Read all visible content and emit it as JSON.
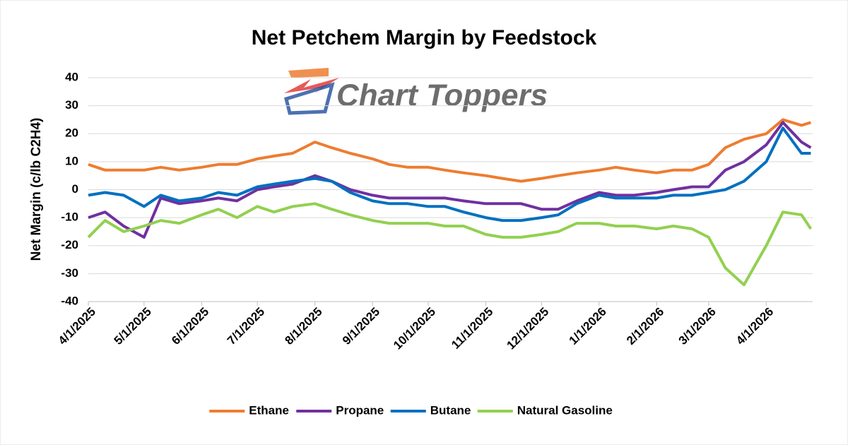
{
  "logo": "Chart Toppers",
  "chart_data": {
    "type": "line",
    "title": "Net Petchem Margin by Feedstock",
    "y_label": "Net Margin (c/lb C2H4)",
    "x": [
      "4/1/2025",
      "4/10/2025",
      "4/20/2025",
      "5/1/2025",
      "5/10/2025",
      "5/20/2025",
      "6/1/2025",
      "6/10/2025",
      "6/20/2025",
      "7/1/2025",
      "7/10/2025",
      "7/20/2025",
      "8/1/2025",
      "8/10/2025",
      "8/20/2025",
      "9/1/2025",
      "9/10/2025",
      "9/20/2025",
      "10/1/2025",
      "10/10/2025",
      "10/20/2025",
      "11/1/2025",
      "11/10/2025",
      "11/20/2025",
      "12/1/2025",
      "12/10/2025",
      "12/20/2025",
      "1/1/2026",
      "1/10/2026",
      "1/20/2026",
      "2/1/2026",
      "2/10/2026",
      "2/20/2026",
      "3/1/2026",
      "3/10/2026",
      "3/20/2026",
      "4/1/2026",
      "4/10/2026",
      "4/20/2026",
      "4/25/2026"
    ],
    "series": [
      {
        "name": "Ethane",
        "color": "#ed7d31",
        "values": [
          9,
          7,
          7,
          7,
          8,
          7,
          8,
          9,
          9,
          11,
          12,
          13,
          17,
          15,
          13,
          11,
          9,
          8,
          8,
          7,
          6,
          5,
          4,
          3,
          4,
          5,
          6,
          7,
          8,
          7,
          6,
          7,
          7,
          9,
          15,
          18,
          20,
          25,
          23,
          24
        ]
      },
      {
        "name": "Propane",
        "color": "#7030a0",
        "values": [
          -10,
          -8,
          -13,
          -17,
          -3,
          -5,
          -4,
          -3,
          -4,
          0,
          1,
          2,
          5,
          3,
          0,
          -2,
          -3,
          -3,
          -3,
          -3,
          -4,
          -5,
          -5,
          -5,
          -7,
          -7,
          -4,
          -1,
          -2,
          -2,
          -1,
          0,
          1,
          1,
          7,
          10,
          16,
          24,
          17,
          15
        ]
      },
      {
        "name": "Butane",
        "color": "#0070c0",
        "values": [
          -2,
          -1,
          -2,
          -6,
          -2,
          -4,
          -3,
          -1,
          -2,
          1,
          2,
          3,
          4,
          3,
          -1,
          -4,
          -5,
          -5,
          -6,
          -6,
          -8,
          -10,
          -11,
          -11,
          -10,
          -9,
          -5,
          -2,
          -3,
          -3,
          -3,
          -2,
          -2,
          -1,
          0,
          3,
          10,
          22,
          13,
          13
        ]
      },
      {
        "name": "Natural Gasoline",
        "color": "#92d050",
        "values": [
          -17,
          -11,
          -15,
          -13,
          -11,
          -12,
          -9,
          -7,
          -10,
          -6,
          -8,
          -6,
          -5,
          -7,
          -9,
          -11,
          -12,
          -12,
          -12,
          -13,
          -13,
          -16,
          -17,
          -17,
          -16,
          -15,
          -12,
          -12,
          -13,
          -13,
          -14,
          -13,
          -14,
          -17,
          -28,
          -34,
          -20,
          -8,
          -9,
          -14
        ]
      }
    ],
    "xlim": [
      "4/1/2025",
      "4/26/2026"
    ],
    "xticks": [
      "4/1/2025",
      "5/1/2025",
      "6/1/2025",
      "7/1/2025",
      "8/1/2025",
      "9/1/2025",
      "10/1/2025",
      "11/1/2025",
      "12/1/2025",
      "1/1/2026",
      "2/1/2026",
      "3/1/2026",
      "4/1/2026"
    ],
    "ylim": [
      -40,
      40
    ],
    "yticks": [
      -40,
      -30,
      -20,
      -10,
      0,
      10,
      20,
      30,
      40
    ],
    "grid": true,
    "legend": "bottom"
  }
}
